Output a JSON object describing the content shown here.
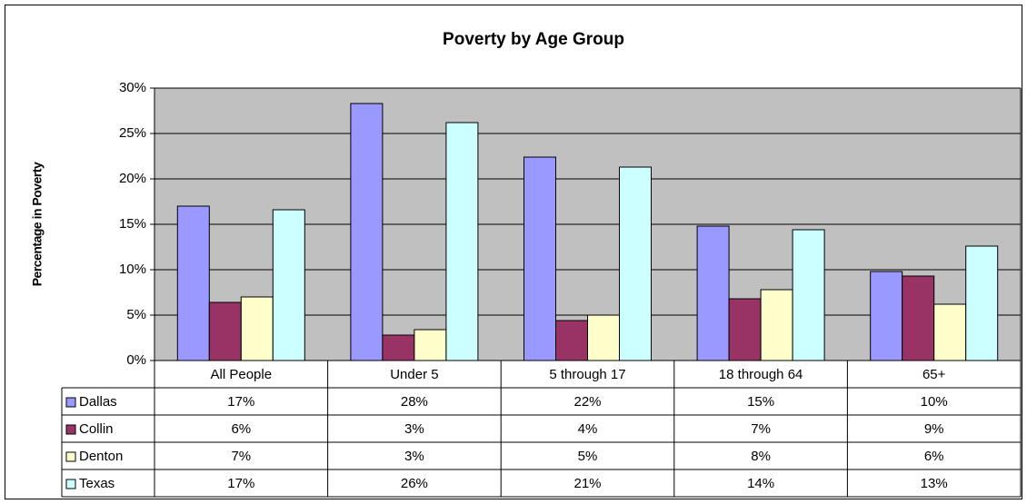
{
  "chart_data": {
    "type": "bar",
    "title": "Poverty by Age Group",
    "y_label": "Percentage in Poverty",
    "categories": [
      "All People",
      "Under 5",
      "5 through 17",
      "18 through 64",
      "65+"
    ],
    "series": [
      {
        "name": "Dallas",
        "color": "#9999ff",
        "values": [
          17.0,
          28.3,
          22.4,
          14.8,
          9.8
        ],
        "value_labels": [
          "17%",
          "28%",
          "22%",
          "15%",
          "10%"
        ]
      },
      {
        "name": "Collin",
        "color": "#993366",
        "values": [
          6.4,
          2.8,
          4.4,
          6.8,
          9.3
        ],
        "value_labels": [
          "6%",
          "3%",
          "4%",
          "7%",
          "9%"
        ]
      },
      {
        "name": "Denton",
        "color": "#ffffcc",
        "values": [
          7.0,
          3.4,
          5.0,
          7.8,
          6.2
        ],
        "value_labels": [
          "7%",
          "3%",
          "5%",
          "8%",
          "6%"
        ]
      },
      {
        "name": "Texas",
        "color": "#ccffff",
        "values": [
          16.6,
          26.2,
          21.3,
          14.4,
          12.6
        ],
        "value_labels": [
          "17%",
          "26%",
          "21%",
          "14%",
          "13%"
        ]
      }
    ],
    "ylim": [
      0,
      30
    ],
    "yticks": [
      {
        "value": 0,
        "label": "0%"
      },
      {
        "value": 5,
        "label": "5%"
      },
      {
        "value": 10,
        "label": "10%"
      },
      {
        "value": 15,
        "label": "15%"
      },
      {
        "value": 20,
        "label": "20%"
      },
      {
        "value": 25,
        "label": "25%"
      },
      {
        "value": 30,
        "label": "30%"
      }
    ],
    "grid": true,
    "plot_background": "#c0c0c0"
  }
}
